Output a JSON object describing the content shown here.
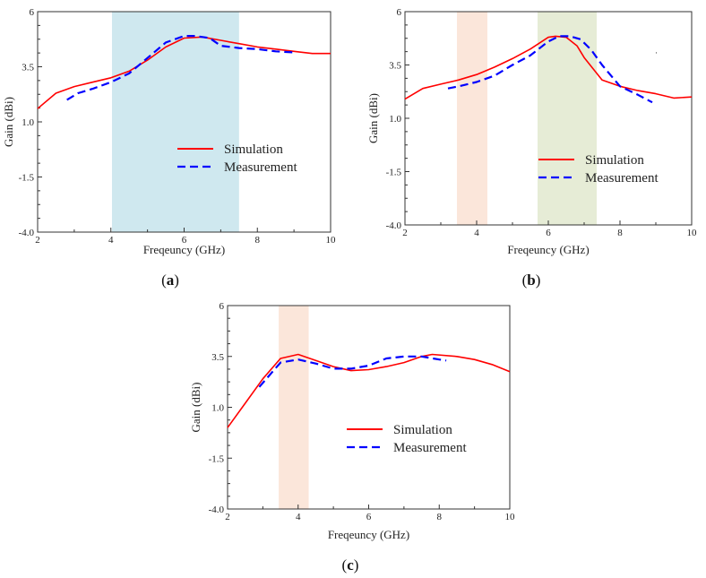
{
  "chart_data": [
    {
      "panel": "a",
      "type": "line",
      "title": "",
      "xlabel": "Freqeuncy (GHz)",
      "ylabel": "Gain (dBi)",
      "xlim": [
        2,
        10
      ],
      "ylim": [
        -4.0,
        6
      ],
      "xticks": [
        "2",
        "4",
        "6",
        "8",
        "10"
      ],
      "yticks": [
        "-4.0",
        "-1.5",
        "1.0",
        "3.5",
        "6"
      ],
      "ytick_values": [
        -4.0,
        -1.5,
        1.0,
        3.5,
        6
      ],
      "xtick_values": [
        2,
        4,
        6,
        8,
        10
      ],
      "legend": [
        "Simulation",
        "Measurement"
      ],
      "caption": "a",
      "bands": [
        {
          "from": 4.03,
          "to": 7.5,
          "color": "#cfe8ef"
        }
      ],
      "series": [
        {
          "name": "Simulation",
          "color": "#ff0000",
          "dash": "solid",
          "x": [
            2.0,
            2.5,
            3.0,
            3.5,
            4.0,
            4.5,
            5.0,
            5.5,
            6.0,
            6.5,
            7.0,
            7.5,
            8.0,
            8.5,
            9.0,
            9.5,
            10.0
          ],
          "y": [
            1.6,
            2.3,
            2.6,
            2.8,
            3.0,
            3.3,
            3.8,
            4.4,
            4.8,
            4.85,
            4.7,
            4.55,
            4.4,
            4.3,
            4.2,
            4.1,
            4.1
          ]
        },
        {
          "name": "Measurement",
          "color": "#0000ff",
          "dash": "dashed",
          "x": [
            2.8,
            3.1,
            3.5,
            4.0,
            4.5,
            5.0,
            5.5,
            6.0,
            6.3,
            6.7,
            7.0,
            7.5,
            8.0,
            8.5,
            9.0
          ],
          "y": [
            2.0,
            2.3,
            2.5,
            2.8,
            3.2,
            3.9,
            4.6,
            4.9,
            4.9,
            4.8,
            4.45,
            4.35,
            4.3,
            4.2,
            4.15
          ]
        }
      ]
    },
    {
      "panel": "b",
      "type": "line",
      "title": "",
      "xlabel": "Freqeuncy (GHz)",
      "ylabel": "Gain (dBi)",
      "xlim": [
        2,
        10
      ],
      "ylim": [
        -4.0,
        6
      ],
      "xticks": [
        "2",
        "4",
        "6",
        "8",
        "10"
      ],
      "yticks": [
        "-4.0",
        "-1.5",
        "1.0",
        "3.5",
        "6"
      ],
      "ytick_values": [
        -4.0,
        -1.5,
        1.0,
        3.5,
        6
      ],
      "xtick_values": [
        2,
        4,
        6,
        8,
        10
      ],
      "legend": [
        "Simulation",
        "Measurement"
      ],
      "caption": "b",
      "bands": [
        {
          "from": 3.45,
          "to": 4.3,
          "color": "#fbe6da"
        },
        {
          "from": 5.7,
          "to": 7.35,
          "color": "#e6ecd6"
        }
      ],
      "series": [
        {
          "name": "Simulation",
          "color": "#ff0000",
          "dash": "solid",
          "x": [
            2.0,
            2.5,
            3.0,
            3.5,
            4.0,
            4.5,
            5.0,
            5.5,
            6.0,
            6.2,
            6.5,
            6.8,
            7.0,
            7.5,
            8.0,
            8.5,
            9.0,
            9.5,
            10.0
          ],
          "y": [
            1.9,
            2.4,
            2.6,
            2.8,
            3.05,
            3.4,
            3.8,
            4.25,
            4.8,
            4.85,
            4.8,
            4.4,
            3.85,
            2.8,
            2.5,
            2.3,
            2.15,
            1.95,
            2.0
          ]
        },
        {
          "name": "Measurement",
          "color": "#0000ff",
          "dash": "dashed",
          "x": [
            3.2,
            3.5,
            4.0,
            4.5,
            5.0,
            5.5,
            6.0,
            6.3,
            6.6,
            6.9,
            7.2,
            7.5,
            7.8,
            8.0,
            8.5,
            8.9
          ],
          "y": [
            2.4,
            2.5,
            2.7,
            3.0,
            3.5,
            3.95,
            4.6,
            4.85,
            4.85,
            4.7,
            4.2,
            3.5,
            2.9,
            2.5,
            2.1,
            1.75
          ]
        }
      ]
    },
    {
      "panel": "c",
      "type": "line",
      "title": "",
      "xlabel": "Freqeuncy (GHz)",
      "ylabel": "Gain (dBi)",
      "xlim": [
        2,
        10
      ],
      "ylim": [
        -4.0,
        6
      ],
      "xticks": [
        "2",
        "4",
        "6",
        "8",
        "10"
      ],
      "yticks": [
        "-4.0",
        "-1.5",
        "1.0",
        "3.5",
        "6"
      ],
      "ytick_values": [
        -4.0,
        -1.5,
        1.0,
        3.5,
        6
      ],
      "xtick_values": [
        2,
        4,
        6,
        8,
        10
      ],
      "legend": [
        "Simulation",
        "Measurement"
      ],
      "caption": "c",
      "bands": [
        {
          "from": 3.45,
          "to": 4.3,
          "color": "#fbe6da"
        }
      ],
      "series": [
        {
          "name": "Simulation",
          "color": "#ff0000",
          "dash": "solid",
          "x": [
            2.0,
            2.5,
            3.0,
            3.5,
            4.0,
            4.5,
            5.0,
            5.5,
            6.0,
            6.5,
            7.0,
            7.5,
            7.8,
            8.5,
            9.0,
            9.5,
            10.0
          ],
          "y": [
            0.0,
            1.2,
            2.4,
            3.4,
            3.6,
            3.3,
            3.0,
            2.8,
            2.85,
            3.0,
            3.2,
            3.5,
            3.6,
            3.5,
            3.35,
            3.1,
            2.75
          ]
        },
        {
          "name": "Measurement",
          "color": "#0000ff",
          "dash": "dashed",
          "x": [
            2.9,
            3.5,
            4.0,
            4.5,
            5.0,
            5.5,
            6.0,
            6.5,
            7.0,
            7.5,
            8.0,
            8.2
          ],
          "y": [
            2.0,
            3.2,
            3.35,
            3.15,
            2.9,
            2.9,
            3.05,
            3.4,
            3.5,
            3.5,
            3.35,
            3.3
          ]
        }
      ]
    }
  ]
}
